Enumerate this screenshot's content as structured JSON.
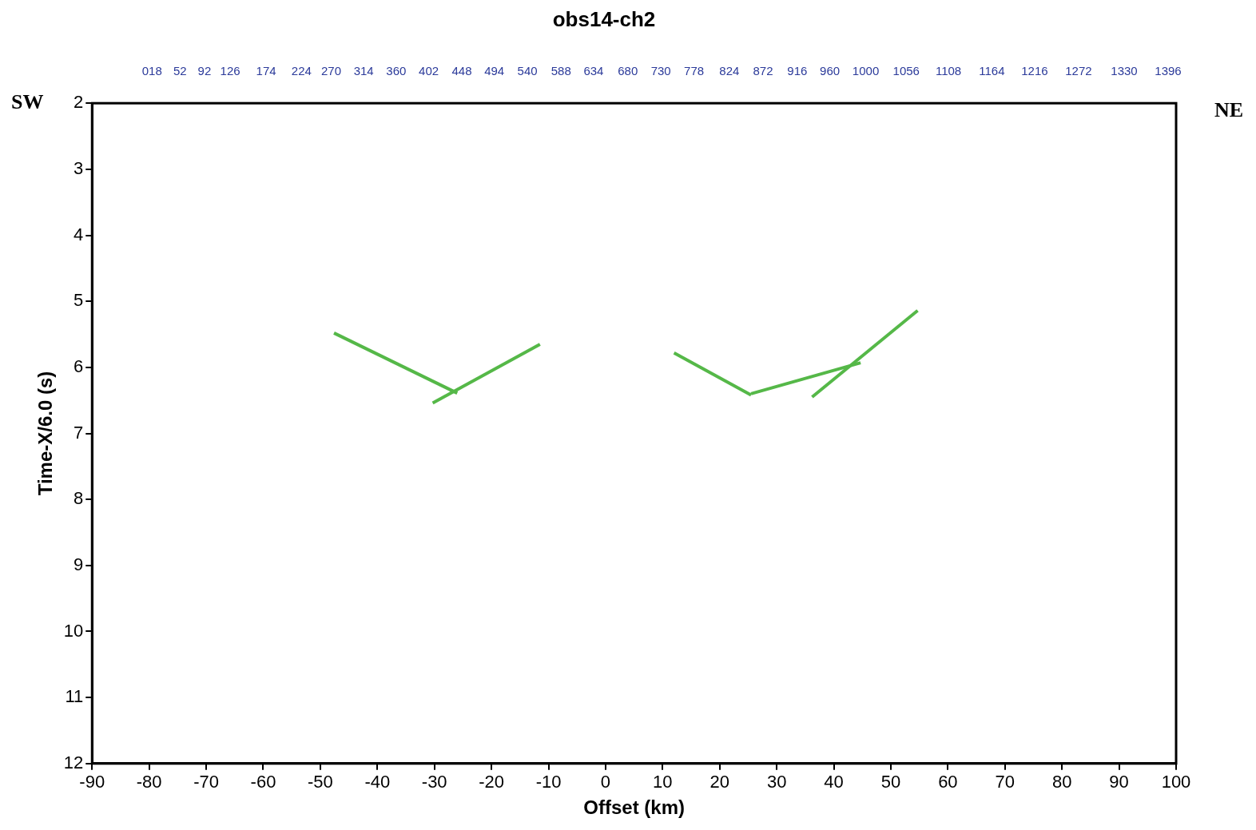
{
  "chart_data": {
    "type": "line",
    "title": "obs14-ch2",
    "x_label": "Offset (km)",
    "y_label": "Time-X/6.0 (s)",
    "annotations": [
      "SW",
      "NE"
    ],
    "xlim": [
      -90,
      100
    ],
    "xticks": [
      -90,
      -80,
      -70,
      -60,
      -50,
      -40,
      -30,
      -20,
      -10,
      0,
      10,
      20,
      30,
      40,
      50,
      60,
      70,
      80,
      90,
      100
    ],
    "ylim": [
      2,
      12
    ],
    "yticks": [
      2,
      3,
      4,
      5,
      6,
      7,
      8,
      9,
      10,
      11,
      12
    ],
    "x2lim": [
      -90,
      100
    ],
    "x2ticks": [
      {
        "value": -79.5,
        "label": "018"
      },
      {
        "value": -74.6,
        "label": "52"
      },
      {
        "value": -70.3,
        "label": "92"
      },
      {
        "value": -65.8,
        "label": "126"
      },
      {
        "value": -59.5,
        "label": "174"
      },
      {
        "value": -53.3,
        "label": "224"
      },
      {
        "value": -48.1,
        "label": "270"
      },
      {
        "value": -42.4,
        "label": "314"
      },
      {
        "value": -36.7,
        "label": "360"
      },
      {
        "value": -31.0,
        "label": "402"
      },
      {
        "value": -25.2,
        "label": "448"
      },
      {
        "value": -19.5,
        "label": "494"
      },
      {
        "value": -13.7,
        "label": "540"
      },
      {
        "value": -7.8,
        "label": "588"
      },
      {
        "value": -2.1,
        "label": "634"
      },
      {
        "value": 3.9,
        "label": "680"
      },
      {
        "value": 9.7,
        "label": "730"
      },
      {
        "value": 15.5,
        "label": "778"
      },
      {
        "value": 21.7,
        "label": "824"
      },
      {
        "value": 27.6,
        "label": "872"
      },
      {
        "value": 33.6,
        "label": "916"
      },
      {
        "value": 39.3,
        "label": "960"
      },
      {
        "value": 45.6,
        "label": "1000"
      },
      {
        "value": 52.7,
        "label": "1056"
      },
      {
        "value": 60.1,
        "label": "1108"
      },
      {
        "value": 67.7,
        "label": "1164"
      },
      {
        "value": 75.2,
        "label": "1216"
      },
      {
        "value": 82.9,
        "label": "1272"
      },
      {
        "value": 90.9,
        "label": "1330"
      },
      {
        "value": 98.6,
        "label": "1396"
      }
    ],
    "grid": false,
    "series": [
      {
        "color": "#55b848",
        "line_style": "solid",
        "x": [
          -47.6,
          -26.0
        ],
        "values": [
          5.48,
          6.39
        ]
      },
      {
        "color": "#55b848",
        "line_style": "solid",
        "x": [
          -30.3,
          -11.5
        ],
        "values": [
          6.54,
          5.65
        ]
      },
      {
        "color": "#55b848",
        "line_style": "solid",
        "x": [
          12.0,
          25.5
        ],
        "values": [
          5.78,
          6.42
        ]
      },
      {
        "color": "#55b848",
        "line_style": "solid",
        "x": [
          25.5,
          44.7
        ],
        "values": [
          6.4,
          5.93
        ]
      },
      {
        "color": "#55b848",
        "line_style": "solid",
        "x": [
          36.2,
          54.7
        ],
        "values": [
          6.45,
          5.14
        ]
      }
    ]
  }
}
